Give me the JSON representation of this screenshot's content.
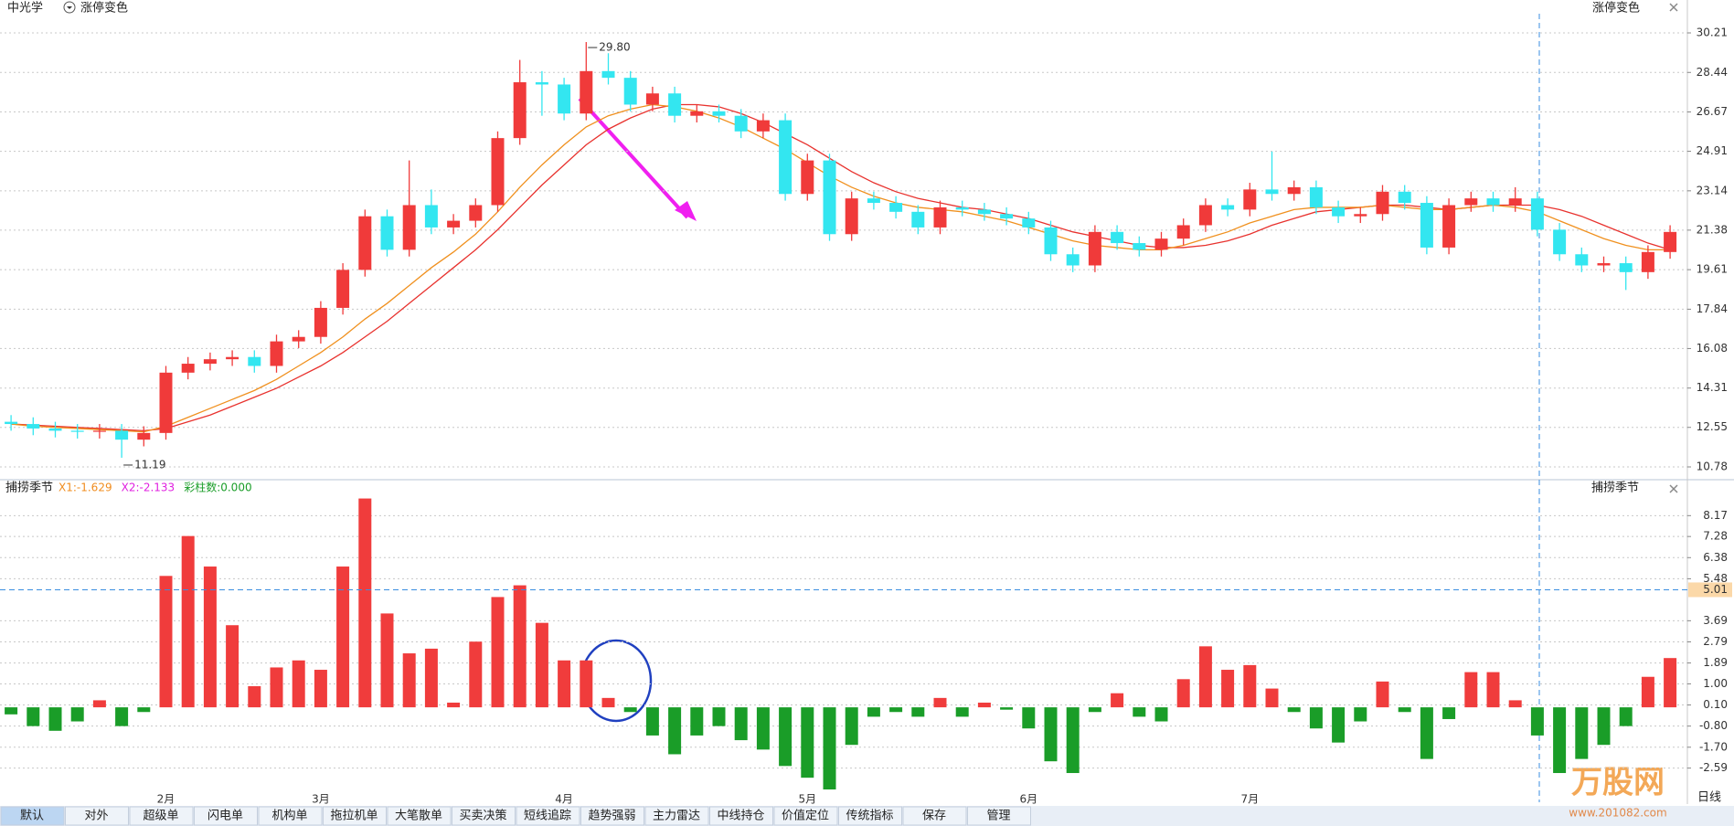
{
  "header": {
    "stock": "中光学",
    "indicator": "涨停变色",
    "indicator_right": "涨停变色"
  },
  "chart_data": [
    {
      "type": "candlestick",
      "up_color": "#f03a3a",
      "down_color": "#33e6f0",
      "grid": true,
      "ylim": [
        10.78,
        30.21
      ],
      "yticks": [
        30.21,
        28.44,
        26.67,
        24.91,
        23.14,
        21.38,
        19.61,
        17.84,
        16.08,
        14.31,
        12.55,
        10.78
      ],
      "high_label": {
        "value": 29.8,
        "label": "29.80"
      },
      "low_label": {
        "value": 11.19,
        "label": "11.19"
      },
      "categories": [
        null,
        null,
        null,
        null,
        null,
        null,
        null,
        "2月",
        null,
        null,
        null,
        null,
        null,
        null,
        "3月",
        null,
        null,
        null,
        null,
        null,
        null,
        null,
        null,
        null,
        null,
        "4月",
        null,
        null,
        null,
        null,
        null,
        null,
        null,
        null,
        null,
        null,
        "5月",
        null,
        null,
        null,
        null,
        null,
        null,
        null,
        null,
        null,
        "6月",
        null,
        null,
        null,
        null,
        null,
        null,
        null,
        null,
        null,
        "7月",
        null,
        null,
        null,
        null,
        null,
        null,
        null,
        null,
        null,
        null,
        null,
        null,
        null,
        null,
        null,
        null,
        null,
        null,
        null
      ],
      "ohlc": [
        [
          12.8,
          13.1,
          12.4,
          12.7
        ],
        [
          12.7,
          13.0,
          12.2,
          12.5
        ],
        [
          12.5,
          12.8,
          12.1,
          12.4
        ],
        [
          12.4,
          12.7,
          12.05,
          12.35
        ],
        [
          12.35,
          12.7,
          12.05,
          12.4
        ],
        [
          12.4,
          12.7,
          11.19,
          12.0
        ],
        [
          12.0,
          12.6,
          11.7,
          12.3
        ],
        [
          12.3,
          15.3,
          12.0,
          15.0
        ],
        [
          15.0,
          15.7,
          14.7,
          15.4
        ],
        [
          15.4,
          15.9,
          15.1,
          15.6
        ],
        [
          15.6,
          16.0,
          15.3,
          15.7
        ],
        [
          15.7,
          16.0,
          15.0,
          15.3
        ],
        [
          15.3,
          16.7,
          15.0,
          16.4
        ],
        [
          16.4,
          16.9,
          16.1,
          16.6
        ],
        [
          16.6,
          18.2,
          16.3,
          17.9
        ],
        [
          17.9,
          19.9,
          17.6,
          19.6
        ],
        [
          19.6,
          22.3,
          19.3,
          22.0
        ],
        [
          22.0,
          22.3,
          20.2,
          20.5
        ],
        [
          20.5,
          24.5,
          20.2,
          22.5
        ],
        [
          22.5,
          23.2,
          21.2,
          21.5
        ],
        [
          21.5,
          22.1,
          21.2,
          21.8
        ],
        [
          21.8,
          22.8,
          21.5,
          22.5
        ],
        [
          22.5,
          25.8,
          22.2,
          25.5
        ],
        [
          25.5,
          29.0,
          25.2,
          28.0
        ],
        [
          28.0,
          28.5,
          26.5,
          27.9
        ],
        [
          27.9,
          28.2,
          26.3,
          26.6
        ],
        [
          26.6,
          29.8,
          26.3,
          28.5
        ],
        [
          28.5,
          29.3,
          27.9,
          28.2
        ],
        [
          28.2,
          28.5,
          26.7,
          27.0
        ],
        [
          27.0,
          27.8,
          26.7,
          27.5
        ],
        [
          27.5,
          27.8,
          26.2,
          26.5
        ],
        [
          26.5,
          27.0,
          26.2,
          26.7
        ],
        [
          26.7,
          27.0,
          26.2,
          26.5
        ],
        [
          26.5,
          26.8,
          25.5,
          25.8
        ],
        [
          25.8,
          26.6,
          25.5,
          26.3
        ],
        [
          26.3,
          26.6,
          22.7,
          23.0
        ],
        [
          23.0,
          24.8,
          22.7,
          24.5
        ],
        [
          24.5,
          24.8,
          20.9,
          21.2
        ],
        [
          21.2,
          23.1,
          20.9,
          22.8
        ],
        [
          22.8,
          23.1,
          22.3,
          22.6
        ],
        [
          22.6,
          22.9,
          21.9,
          22.2
        ],
        [
          22.2,
          22.5,
          21.2,
          21.5
        ],
        [
          21.5,
          22.7,
          21.2,
          22.4
        ],
        [
          22.4,
          22.7,
          22.0,
          22.3
        ],
        [
          22.3,
          22.6,
          21.8,
          22.1
        ],
        [
          22.1,
          22.4,
          21.6,
          21.9
        ],
        [
          21.9,
          22.2,
          21.2,
          21.5
        ],
        [
          21.5,
          21.8,
          20.0,
          20.3
        ],
        [
          20.3,
          20.6,
          19.5,
          19.8
        ],
        [
          19.8,
          21.6,
          19.5,
          21.3
        ],
        [
          21.3,
          21.6,
          20.5,
          20.8
        ],
        [
          20.8,
          21.1,
          20.2,
          20.5
        ],
        [
          20.5,
          21.3,
          20.2,
          21.0
        ],
        [
          21.0,
          21.9,
          20.7,
          21.6
        ],
        [
          21.6,
          22.8,
          21.3,
          22.5
        ],
        [
          22.5,
          22.8,
          22.0,
          22.3
        ],
        [
          22.3,
          23.5,
          22.0,
          23.2
        ],
        [
          23.2,
          24.9,
          22.7,
          23.0
        ],
        [
          23.0,
          23.6,
          22.7,
          23.3
        ],
        [
          23.3,
          23.6,
          22.1,
          22.4
        ],
        [
          22.4,
          22.7,
          21.7,
          22.0
        ],
        [
          22.0,
          22.4,
          21.7,
          22.1
        ],
        [
          22.1,
          23.4,
          21.8,
          23.1
        ],
        [
          23.1,
          23.4,
          22.3,
          22.6
        ],
        [
          22.6,
          22.9,
          20.3,
          20.6
        ],
        [
          20.6,
          22.8,
          20.3,
          22.5
        ],
        [
          22.5,
          23.1,
          22.2,
          22.8
        ],
        [
          22.8,
          23.1,
          22.2,
          22.5
        ],
        [
          22.5,
          23.3,
          22.2,
          22.8
        ],
        [
          22.8,
          23.1,
          21.1,
          21.4
        ],
        [
          21.4,
          21.7,
          20.0,
          20.3
        ],
        [
          20.3,
          20.6,
          19.5,
          19.8
        ],
        [
          19.8,
          20.2,
          19.5,
          19.9
        ],
        [
          19.9,
          20.2,
          18.7,
          19.5
        ],
        [
          19.5,
          20.7,
          19.2,
          20.4
        ],
        [
          20.4,
          21.6,
          20.1,
          21.3
        ]
      ],
      "ma_lines": [
        {
          "color": "#e8322e",
          "values": [
            12.7,
            12.65,
            12.6,
            12.55,
            12.5,
            12.45,
            12.4,
            12.5,
            12.8,
            13.1,
            13.5,
            13.9,
            14.3,
            14.8,
            15.3,
            15.9,
            16.6,
            17.3,
            18.1,
            18.9,
            19.7,
            20.5,
            21.4,
            22.4,
            23.4,
            24.3,
            25.2,
            25.9,
            26.4,
            26.8,
            27.0,
            27.0,
            26.9,
            26.6,
            26.2,
            25.7,
            25.2,
            24.6,
            24.0,
            23.5,
            23.1,
            22.8,
            22.6,
            22.4,
            22.3,
            22.1,
            21.9,
            21.6,
            21.3,
            21.1,
            20.9,
            20.7,
            20.6,
            20.6,
            20.7,
            20.9,
            21.2,
            21.6,
            21.9,
            22.2,
            22.3,
            22.4,
            22.5,
            22.5,
            22.4,
            22.3,
            22.4,
            22.5,
            22.5,
            22.5,
            22.3,
            22.0,
            21.6,
            21.2,
            20.8,
            20.5
          ]
        },
        {
          "color": "#f0901e",
          "values": [
            12.7,
            12.6,
            12.55,
            12.5,
            12.45,
            12.4,
            12.35,
            12.6,
            13.0,
            13.4,
            13.8,
            14.2,
            14.7,
            15.3,
            15.9,
            16.6,
            17.4,
            18.1,
            18.9,
            19.7,
            20.4,
            21.2,
            22.2,
            23.3,
            24.3,
            25.2,
            26.0,
            26.5,
            26.8,
            27.0,
            26.9,
            26.7,
            26.4,
            26.0,
            25.5,
            25.0,
            24.4,
            23.8,
            23.3,
            22.9,
            22.6,
            22.4,
            22.3,
            22.2,
            22.0,
            21.8,
            21.5,
            21.2,
            20.9,
            20.7,
            20.6,
            20.5,
            20.5,
            20.7,
            21.0,
            21.3,
            21.7,
            22.0,
            22.3,
            22.4,
            22.4,
            22.4,
            22.5,
            22.4,
            22.3,
            22.3,
            22.4,
            22.5,
            22.4,
            22.2,
            21.8,
            21.4,
            21.0,
            20.7,
            20.5,
            20.5
          ]
        }
      ]
    },
    {
      "type": "bar",
      "title": "捕捞季节",
      "title_right": "捕捞季节",
      "legend": [
        {
          "text": "X1:-1.629",
          "color": "#f08c1e"
        },
        {
          "text": "X2:-2.133",
          "color": "#e020e0"
        },
        {
          "text": "彩柱数:0.000",
          "color": "#1a9d28"
        }
      ],
      "pos_color": "#f03c3c",
      "neg_color": "#1a9d28",
      "ylim": [
        -3.5,
        9.0
      ],
      "yticks": [
        8.17,
        7.28,
        6.38,
        5.48,
        3.69,
        2.79,
        1.89,
        {
          "value": 1,
          "label": "1.00"
        },
        {
          "value": 0.1,
          "label": "0.10"
        },
        {
          "value": -0.8,
          "label": "-0.80"
        },
        {
          "value": -1.7,
          "label": "-1.70"
        },
        -2.59
      ],
      "reference": {
        "value": 5.01,
        "label": "5.01"
      },
      "values": [
        -0.3,
        -0.8,
        -1.0,
        -0.6,
        0.3,
        -0.8,
        -0.2,
        5.6,
        7.3,
        6.0,
        3.5,
        0.9,
        1.7,
        2.0,
        1.6,
        6.0,
        8.9,
        4.0,
        2.3,
        2.5,
        0.2,
        2.8,
        4.7,
        5.2,
        3.6,
        2.0,
        2.0,
        0.4,
        -0.2,
        -1.2,
        -2.0,
        -1.2,
        -0.8,
        -1.4,
        -1.8,
        -2.5,
        -3.0,
        -3.5,
        -1.6,
        -0.4,
        -0.2,
        -0.4,
        0.4,
        -0.4,
        0.2,
        -0.1,
        -0.9,
        -2.3,
        -2.8,
        -0.2,
        0.6,
        -0.4,
        -0.6,
        1.2,
        2.6,
        1.6,
        1.8,
        0.8,
        -0.2,
        -0.9,
        -1.5,
        -0.6,
        1.1,
        -0.2,
        -2.2,
        -0.5,
        1.5,
        1.5,
        0.3,
        -1.2,
        -2.8,
        -2.2,
        -1.6,
        -0.8,
        1.3,
        2.1
      ]
    }
  ],
  "period": "日线",
  "tabs": [
    "默认",
    "对外",
    "超级单",
    "闪电单",
    "机构单",
    "拖拉机单",
    "大笔散单",
    "买卖决策",
    "短线追踪",
    "趋势强弱",
    "主力雷达",
    "中线持仓",
    "价值定位",
    "传统指标",
    "保存",
    "管理"
  ],
  "watermark": {
    "name": "万股网",
    "url": "www.201082.com"
  }
}
